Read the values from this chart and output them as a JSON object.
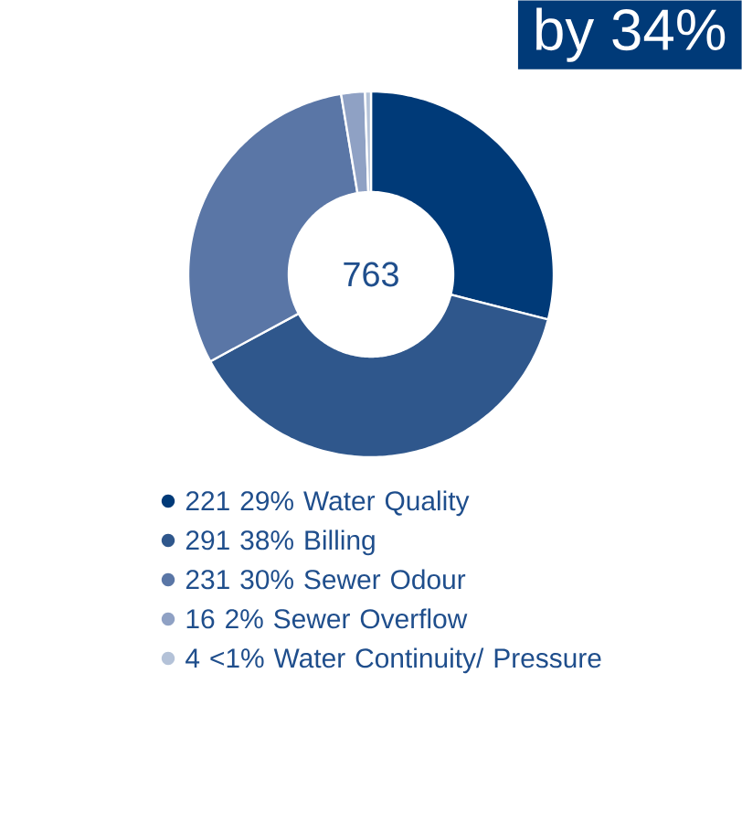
{
  "chart_data": {
    "type": "donut",
    "categories": [
      "221  29%  Water Quality",
      "291  38%  Billing",
      "231  30%  Sewer Odour",
      "16  2%  Sewer Overflow",
      "4  <1%  Water Continuity/ Pressure"
    ],
    "values": [
      221,
      291,
      231,
      16,
      4
    ],
    "colors": [
      "#003a78",
      "#2f578c",
      "#5a76a6",
      "#8fa1c4",
      "#b4c2d8"
    ],
    "legend": "bottom",
    "annotations": [
      "763",
      "by 34%"
    ]
  }
}
